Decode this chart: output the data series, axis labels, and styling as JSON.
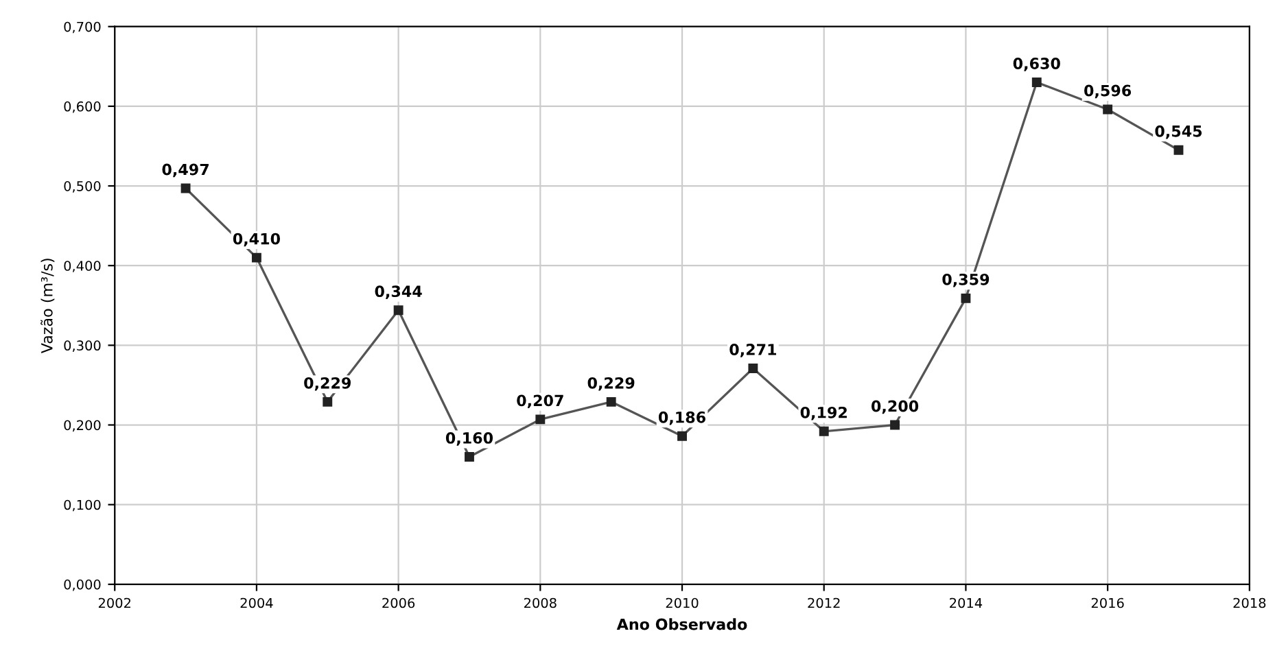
{
  "chart_data": {
    "type": "line",
    "xlabel": "Ano Observado",
    "ylabel": "Vazão (m³/s)",
    "x": [
      2003,
      2004,
      2005,
      2006,
      2007,
      2008,
      2009,
      2010,
      2011,
      2012,
      2013,
      2014,
      2015,
      2016,
      2017
    ],
    "series": [
      {
        "color": "#555555",
        "values": [
          0.497,
          0.41,
          0.229,
          0.344,
          0.16,
          0.207,
          0.229,
          0.186,
          0.271,
          0.192,
          0.2,
          0.359,
          0.63,
          0.596,
          0.545
        ],
        "value_labels": [
          "0,497",
          "0,410",
          "0,229",
          "0,344",
          "0,160",
          "0,207",
          "0,229",
          "0,186",
          "0,271",
          "0,192",
          "0,200",
          "0,359",
          "0,630",
          "0,596",
          "0,545"
        ]
      }
    ],
    "xlim": [
      2002,
      2018
    ],
    "xticks": [
      2002,
      2004,
      2006,
      2008,
      2010,
      2012,
      2014,
      2016,
      2018
    ],
    "ylim": [
      0,
      0.7
    ],
    "yticks": [
      {
        "value": 0,
        "label": "0,000"
      },
      {
        "value": 0.1,
        "label": "0,100"
      },
      {
        "value": 0.2,
        "label": "0,200"
      },
      {
        "value": 0.3,
        "label": "0,300"
      },
      {
        "value": 0.4,
        "label": "0,400"
      },
      {
        "value": 0.5,
        "label": "0,500"
      },
      {
        "value": 0.6,
        "label": "0,600"
      },
      {
        "value": 0.7,
        "label": "0,700"
      }
    ],
    "grid": true,
    "marker": "square",
    "line_style": "solid"
  }
}
